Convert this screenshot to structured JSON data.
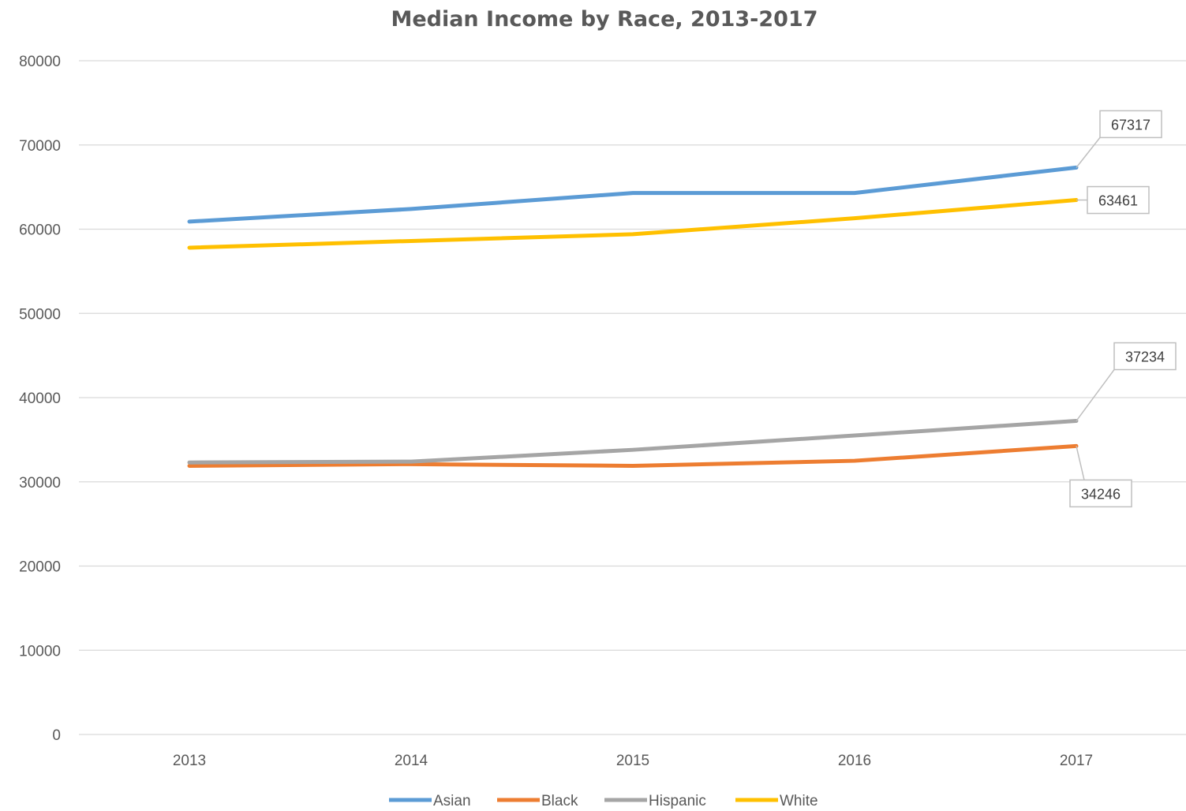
{
  "chart_data": {
    "type": "line",
    "title": "Median Income by Race, 2013-2017",
    "xlabel": "",
    "ylabel": "",
    "categories": [
      "2013",
      "2014",
      "2015",
      "2016",
      "2017"
    ],
    "ylim": [
      0,
      80000
    ],
    "yticks": [
      "0",
      "10000",
      "20000",
      "30000",
      "40000",
      "50000",
      "60000",
      "70000",
      "80000"
    ],
    "grid": true,
    "legend_position": "bottom",
    "series": [
      {
        "name": "Asian",
        "color": "#5b9bd5",
        "values": [
          60900,
          62400,
          64300,
          64300,
          67317
        ]
      },
      {
        "name": "Black",
        "color": "#ed7d31",
        "values": [
          31900,
          32100,
          31900,
          32500,
          34246
        ]
      },
      {
        "name": "Hispanic",
        "color": "#a5a5a5",
        "values": [
          32300,
          32400,
          33800,
          35500,
          37234
        ]
      },
      {
        "name": "White",
        "color": "#ffc000",
        "values": [
          57800,
          58600,
          59400,
          61300,
          63461
        ]
      }
    ],
    "data_labels": [
      {
        "series": "Asian",
        "category": "2017",
        "text": "67317"
      },
      {
        "series": "White",
        "category": "2017",
        "text": "63461"
      },
      {
        "series": "Hispanic",
        "category": "2017",
        "text": "37234"
      },
      {
        "series": "Black",
        "category": "2017",
        "text": "34246"
      }
    ]
  }
}
